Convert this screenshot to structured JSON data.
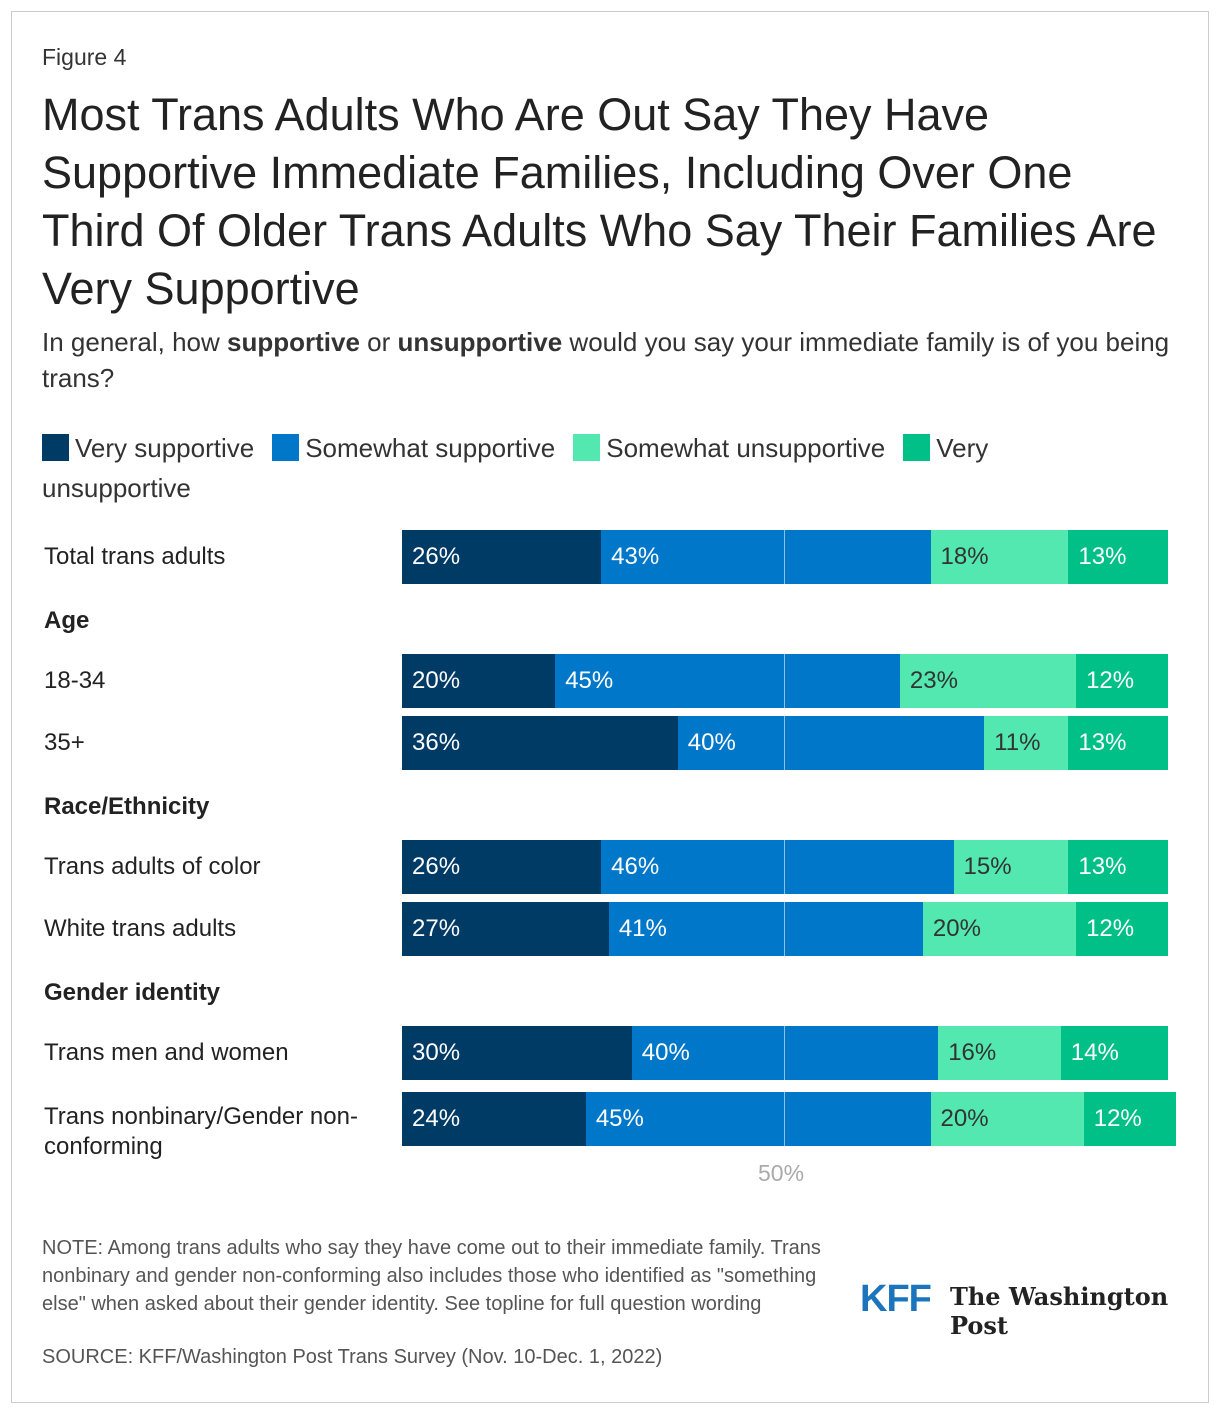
{
  "figure_label": "Figure 4",
  "title": "Most Trans Adults Who Are Out Say They Have Supportive Immediate Families, Including Over One Third Of Older Trans Adults Who Say Their Families Are Very Supportive",
  "subtitle": {
    "p1": "In general, how ",
    "b1": "supportive",
    "p2": " or ",
    "b2": "unsupportive",
    "p3": " would you say your immediate family is of you being trans?"
  },
  "chart_data": {
    "type": "bar",
    "orientation": "horizontal-stacked",
    "series": [
      {
        "name": "Very supportive",
        "color": "#003b66"
      },
      {
        "name": "Somewhat supportive",
        "color": "#0077c8"
      },
      {
        "name": "Somewhat unsupportive",
        "color": "#52e8b0"
      },
      {
        "name": "Very unsupportive",
        "color": "#00bf87"
      }
    ],
    "rows": [
      {
        "label": "Total trans adults",
        "values": [
          26,
          43,
          18,
          13
        ]
      },
      {
        "group": "Age"
      },
      {
        "label": "18-34",
        "values": [
          20,
          45,
          23,
          12
        ]
      },
      {
        "label": "35+",
        "values": [
          36,
          40,
          11,
          13
        ]
      },
      {
        "group": "Race/Ethnicity"
      },
      {
        "label": "Trans adults of color",
        "values": [
          26,
          46,
          15,
          13
        ]
      },
      {
        "label": "White trans adults",
        "values": [
          27,
          41,
          20,
          12
        ]
      },
      {
        "group": "Gender identity"
      },
      {
        "label": "Trans men and women",
        "values": [
          30,
          40,
          16,
          14
        ]
      },
      {
        "label": "Trans nonbinary/Gender non-conforming",
        "values": [
          24,
          45,
          20,
          12
        ]
      }
    ],
    "xlim": [
      0,
      100
    ],
    "reference_line": {
      "value": 50,
      "label": "50%"
    }
  },
  "note": "NOTE: Among trans adults who say they have come out to their immediate family. Trans nonbinary and gender non-conforming also includes those who identified as \"something else\" when asked about their gender identity. See topline for full question wording",
  "source": "SOURCE: KFF/Washington Post Trans Survey (Nov. 10-Dec. 1, 2022)",
  "logos": {
    "kff": "KFF",
    "wapo": "The Washington Post"
  }
}
